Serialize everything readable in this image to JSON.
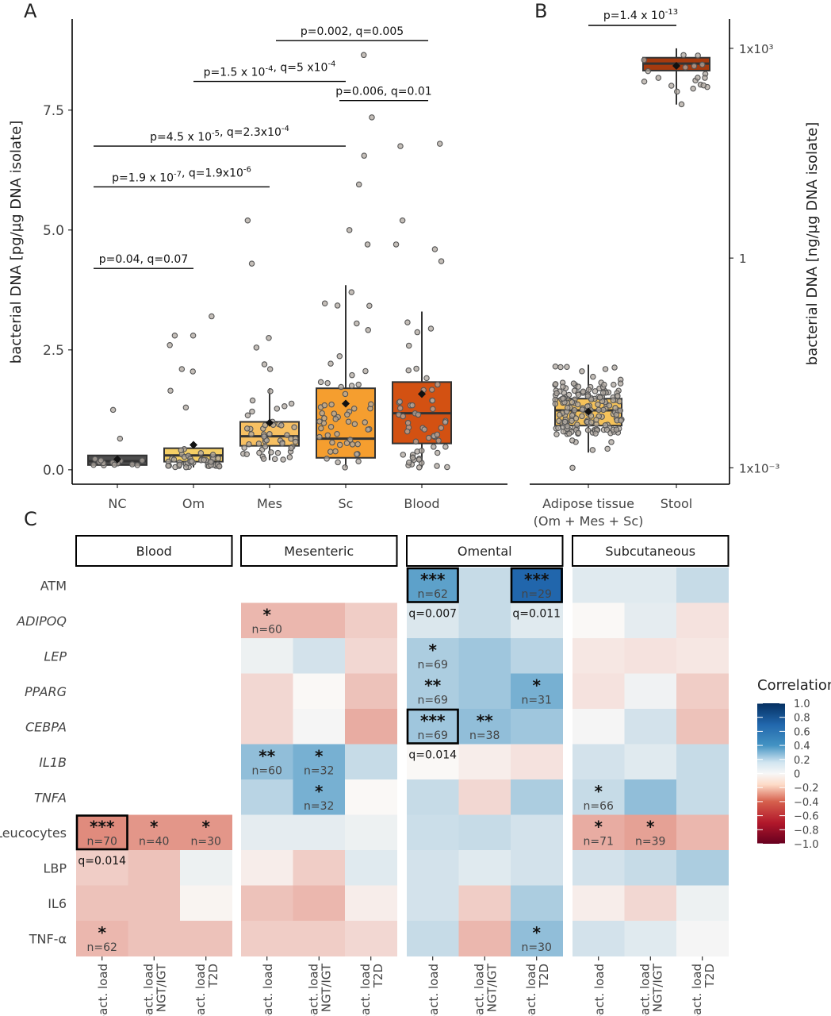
{
  "colors": {
    "NC": "#4d4d4d",
    "Om": "#f5cf65",
    "Mes": "#f7c062",
    "Sc": "#f59e2f",
    "Blood": "#d35112",
    "Adipose": "#f5c25a",
    "Stool": "#a53a0e",
    "positive": "#2166ac",
    "negative": "#b2182b"
  },
  "chart_data": [
    {
      "panel": "A",
      "type": "box",
      "ylabel": "bacterial DNA [pg/µg DNA isolate]",
      "ylim": [
        -0.3,
        9.4
      ],
      "yticks": [
        0.0,
        2.5,
        5.0,
        7.5
      ],
      "ytick_labels": [
        "0.0",
        "2.5",
        "5.0",
        "7.5"
      ],
      "categories": [
        "NC",
        "Om",
        "Mes",
        "Sc",
        "Blood"
      ],
      "boxes": [
        {
          "group": "NC",
          "q1": 0.1,
          "median": 0.18,
          "q3": 0.3,
          "whisker_low": 0.08,
          "whisker_high": 0.3,
          "mean": 0.22
        },
        {
          "group": "Om",
          "q1": 0.17,
          "median": 0.3,
          "q3": 0.45,
          "whisker_low": 0.05,
          "whisker_high": 0.45,
          "mean": 0.52
        },
        {
          "group": "Mes",
          "q1": 0.5,
          "median": 0.7,
          "q3": 1.0,
          "whisker_low": 0.2,
          "whisker_high": 1.7,
          "mean": 0.98
        },
        {
          "group": "Sc",
          "q1": 0.25,
          "median": 0.65,
          "q3": 1.7,
          "whisker_low": 0.05,
          "whisker_high": 3.85,
          "mean": 1.38
        },
        {
          "group": "Blood",
          "q1": 0.55,
          "median": 1.18,
          "q3": 1.83,
          "whisker_low": 0.05,
          "whisker_high": 3.3,
          "mean": 1.58
        }
      ],
      "outliers": {
        "NC": [
          1.25,
          0.65
        ],
        "Om": [
          3.2,
          2.8,
          2.8,
          2.6,
          2.1,
          2.05,
          1.65,
          1.3
        ],
        "Mes": [
          5.2,
          4.3,
          2.75,
          2.55,
          2.2,
          2.1
        ],
        "Sc": [
          8.65,
          7.35,
          6.55,
          5.95,
          5.0,
          4.7
        ],
        "Blood": [
          6.8,
          6.75,
          5.2,
          4.7,
          4.6,
          4.35
        ]
      },
      "comparisons": [
        {
          "from": "NC",
          "to": "Om",
          "label": "p=0.04, q=0.07",
          "y": 4.2
        },
        {
          "from": "NC",
          "to": "Mes",
          "label": "p=1.9 x 10-7, q=1.9x10-6",
          "y": 5.9
        },
        {
          "from": "NC",
          "to": "Sc",
          "label": "p=4.5 x 10-5, q=2.3x10-4",
          "y": 6.75
        },
        {
          "from": "Om",
          "to": "Sc",
          "label": "p=1.5 x 10-4, q=5 x10-4",
          "y": 8.1
        },
        {
          "from": "Sc",
          "to": "Blood",
          "label": "p=0.006, q=0.01",
          "y": 7.7
        },
        {
          "from": "Mes",
          "to": "Blood",
          "label": "p=0.002, q=0.005",
          "y": 8.95
        }
      ]
    },
    {
      "panel": "B",
      "type": "box",
      "scale": "log10",
      "ylabel": "bacterial DNA [ng/µg DNA isolate]",
      "ylim": [
        -3.72,
        0.25
      ],
      "tick_labels": [
        "1x10³",
        "1",
        "1x10⁻³"
      ],
      "categories": [
        "Adipose tissue",
        "Stool"
      ],
      "category_sublabel": "(Om + Mes + Sc)",
      "boxes": [
        {
          "group": "Adipose tissue",
          "q1": -3.22,
          "median": -3.09,
          "q3": -2.99,
          "whisker_low": -3.45,
          "whisker_high": -2.7,
          "mean": -3.1,
          "outliers": [
            -3.58
          ]
        },
        {
          "group": "Stool",
          "q1": -0.19,
          "median": -0.13,
          "q3": -0.08,
          "whisker_low": -0.48,
          "whisker_high": 0.0,
          "mean": -0.15
        }
      ],
      "comparison": {
        "from": "Adipose tissue",
        "to": "Stool",
        "label": "p=1.4 x 10-13"
      }
    },
    {
      "panel": "C",
      "type": "heatmap",
      "facets": [
        "Blood",
        "Mesenteric",
        "Omental",
        "Subcutaneous"
      ],
      "rows": [
        "ATM",
        "ADIPOQ",
        "LEP",
        "PPARG",
        "CEBPA",
        "IL1B",
        "TNFA",
        "Leucocytes",
        "LBP",
        "IL6",
        "TNF-α"
      ],
      "italic_rows": [
        "ADIPOQ",
        "LEP",
        "PPARG",
        "CEBPA",
        "IL1B",
        "TNFA"
      ],
      "columns": [
        "bact. load",
        "bact. load NGT/IGT",
        "bact. load T2D"
      ],
      "legend": {
        "title": "Correlation",
        "ticks": [
          "1.0",
          "0.8",
          "0.6",
          "0.4",
          "0.2",
          "0",
          "−0.2",
          "−0.4",
          "−0.6",
          "−0.8",
          "−1.0"
        ],
        "range": [
          -1.0,
          1.0
        ]
      },
      "values": {
        "Blood": [
          [
            null,
            null,
            null
          ],
          [
            null,
            null,
            null
          ],
          [
            null,
            null,
            null
          ],
          [
            null,
            null,
            null
          ],
          [
            null,
            null,
            null
          ],
          [
            null,
            null,
            null
          ],
          [
            null,
            null,
            null
          ],
          [
            -0.5,
            -0.45,
            -0.45
          ],
          [
            -0.2,
            -0.25,
            0.05
          ],
          [
            -0.25,
            -0.25,
            -0.02
          ],
          [
            -0.3,
            -0.25,
            -0.25
          ]
        ],
        "Mesenteric": [
          [
            null,
            null,
            null
          ],
          [
            -0.3,
            -0.3,
            -0.2
          ],
          [
            0.05,
            0.15,
            -0.15
          ],
          [
            -0.15,
            0.0,
            -0.25
          ],
          [
            -0.15,
            0.02,
            -0.35
          ],
          [
            0.4,
            0.5,
            0.2
          ],
          [
            0.25,
            0.5,
            0.0
          ],
          [
            0.08,
            0.08,
            0.05
          ],
          [
            -0.05,
            -0.2,
            0.1
          ],
          [
            -0.25,
            -0.3,
            -0.05
          ],
          [
            -0.2,
            -0.2,
            -0.15
          ]
        ],
        "Omental": [
          [
            0.6,
            0.2,
            0.7
          ],
          [
            0.12,
            0.2,
            0.1
          ],
          [
            0.3,
            0.35,
            0.25
          ],
          [
            0.3,
            0.35,
            0.5
          ],
          [
            0.35,
            0.4,
            0.35
          ],
          [
            0.0,
            -0.05,
            -0.1
          ],
          [
            0.2,
            -0.15,
            0.3
          ],
          [
            0.18,
            0.2,
            0.15
          ],
          [
            0.15,
            0.1,
            0.15
          ],
          [
            0.15,
            -0.2,
            0.3
          ],
          [
            0.2,
            -0.3,
            0.4
          ]
        ],
        "Subcutaneous": [
          [
            0.1,
            0.1,
            0.2
          ],
          [
            0.0,
            0.08,
            -0.1
          ],
          [
            -0.08,
            -0.1,
            -0.08
          ],
          [
            -0.1,
            0.04,
            -0.2
          ],
          [
            0.02,
            0.15,
            -0.25
          ],
          [
            0.15,
            0.1,
            0.2
          ],
          [
            0.2,
            0.4,
            0.2
          ],
          [
            -0.35,
            -0.4,
            -0.3
          ],
          [
            0.15,
            0.2,
            0.3
          ],
          [
            -0.05,
            -0.15,
            0.05
          ],
          [
            0.15,
            0.1,
            0.02
          ]
        ]
      },
      "annotations": [
        {
          "facet": "Omental",
          "row": 0,
          "col": 0,
          "stars": "***",
          "n": "n=62",
          "box": true,
          "q": "q=0.007"
        },
        {
          "facet": "Omental",
          "row": 0,
          "col": 2,
          "stars": "***",
          "n": "n=29",
          "box": true,
          "q": "q=0.011"
        },
        {
          "facet": "Mesenteric",
          "row": 1,
          "col": 0,
          "stars": "*",
          "n": "n=60"
        },
        {
          "facet": "Omental",
          "row": 2,
          "col": 0,
          "stars": "*",
          "n": "n=69"
        },
        {
          "facet": "Omental",
          "row": 3,
          "col": 0,
          "stars": "**",
          "n": "n=69"
        },
        {
          "facet": "Omental",
          "row": 3,
          "col": 2,
          "stars": "*",
          "n": "n=31"
        },
        {
          "facet": "Omental",
          "row": 4,
          "col": 0,
          "stars": "***",
          "n": "n=69",
          "box": true,
          "q": "q=0.014"
        },
        {
          "facet": "Omental",
          "row": 4,
          "col": 1,
          "stars": "**",
          "n": "n=38"
        },
        {
          "facet": "Mesenteric",
          "row": 5,
          "col": 0,
          "stars": "**",
          "n": "n=60"
        },
        {
          "facet": "Mesenteric",
          "row": 5,
          "col": 1,
          "stars": "*",
          "n": "n=32"
        },
        {
          "facet": "Mesenteric",
          "row": 6,
          "col": 1,
          "stars": "*",
          "n": "n=32"
        },
        {
          "facet": "Subcutaneous",
          "row": 6,
          "col": 0,
          "stars": "*",
          "n": "n=66"
        },
        {
          "facet": "Blood",
          "row": 7,
          "col": 0,
          "stars": "***",
          "n": "n=70",
          "box": true,
          "q": "q=0.014"
        },
        {
          "facet": "Blood",
          "row": 7,
          "col": 1,
          "stars": "*",
          "n": "n=40"
        },
        {
          "facet": "Blood",
          "row": 7,
          "col": 2,
          "stars": "*",
          "n": "n=30"
        },
        {
          "facet": "Subcutaneous",
          "row": 7,
          "col": 0,
          "stars": "*",
          "n": "n=71"
        },
        {
          "facet": "Subcutaneous",
          "row": 7,
          "col": 1,
          "stars": "*",
          "n": "n=39"
        },
        {
          "facet": "Blood",
          "row": 10,
          "col": 0,
          "stars": "*",
          "n": "n=62"
        },
        {
          "facet": "Omental",
          "row": 10,
          "col": 2,
          "stars": "*",
          "n": "n=30"
        }
      ]
    }
  ],
  "panel_labels": [
    "A",
    "B",
    "C"
  ]
}
